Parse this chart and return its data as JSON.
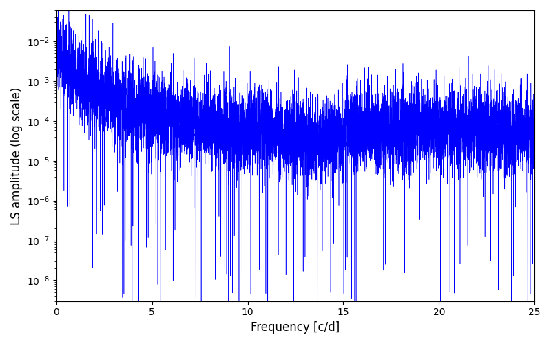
{
  "title": "",
  "xlabel": "Frequency [c/d]",
  "ylabel": "LS amplitude (log scale)",
  "xlim": [
    0,
    25
  ],
  "ylim_log": [
    3e-09,
    0.06
  ],
  "line_color": "#0000FF",
  "line_width": 0.4,
  "freq_max": 25.0,
  "n_points": 8000,
  "seed": 42,
  "background_color": "#ffffff",
  "fig_width": 8.0,
  "fig_height": 5.0,
  "dpi": 100
}
